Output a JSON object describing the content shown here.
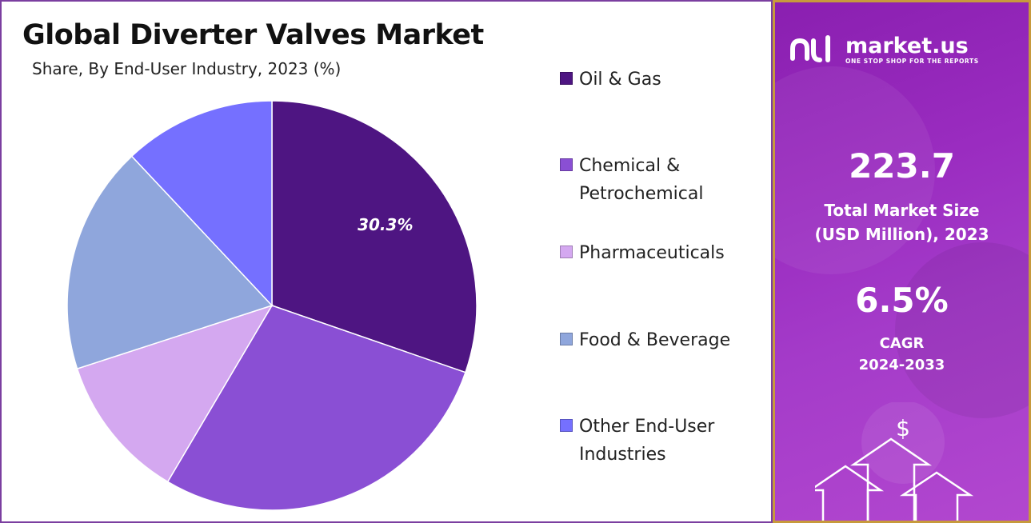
{
  "chart_data": {
    "type": "pie",
    "title": "Global Diverter Valves Market",
    "subtitle": "Share, By End-User Industry, 2023 (%)",
    "categories": [
      "Oil & Gas",
      "Chemical & Petrochemical",
      "Pharmaceuticals",
      "Food & Beverage",
      "Other End-User Industries"
    ],
    "legend_lines": [
      [
        "Oil & Gas"
      ],
      [
        "Chemical &",
        "Petrochemical"
      ],
      [
        "Pharmaceuticals"
      ],
      [
        "Food & Beverage"
      ],
      [
        "Other End-User",
        "Industries"
      ]
    ],
    "values": [
      30.3,
      28.2,
      11.5,
      18.0,
      12.0
    ],
    "colors": [
      "#4e1582",
      "#8a4fd4",
      "#d4a8f0",
      "#8fa6dc",
      "#7570ff"
    ],
    "data_labels": [
      "30.3%",
      "",
      "",
      "",
      ""
    ],
    "legend_position": "right"
  },
  "brand": {
    "name": "market.us",
    "tagline": "ONE STOP SHOP FOR THE REPORTS",
    "logo_icon": "market-us-logo-icon"
  },
  "stats": {
    "market_size_value": "223.7",
    "market_size_label_1": "Total Market Size",
    "market_size_label_2": "(USD Million), 2023",
    "cagr_value": "6.5%",
    "cagr_label_1": "CAGR",
    "cagr_label_2": "2024-2033",
    "graphic_symbol": "$"
  },
  "colors": {
    "panel_border": "#7b3fa0",
    "info_border": "#c79a3c",
    "info_bg": "#9a2cc0"
  }
}
